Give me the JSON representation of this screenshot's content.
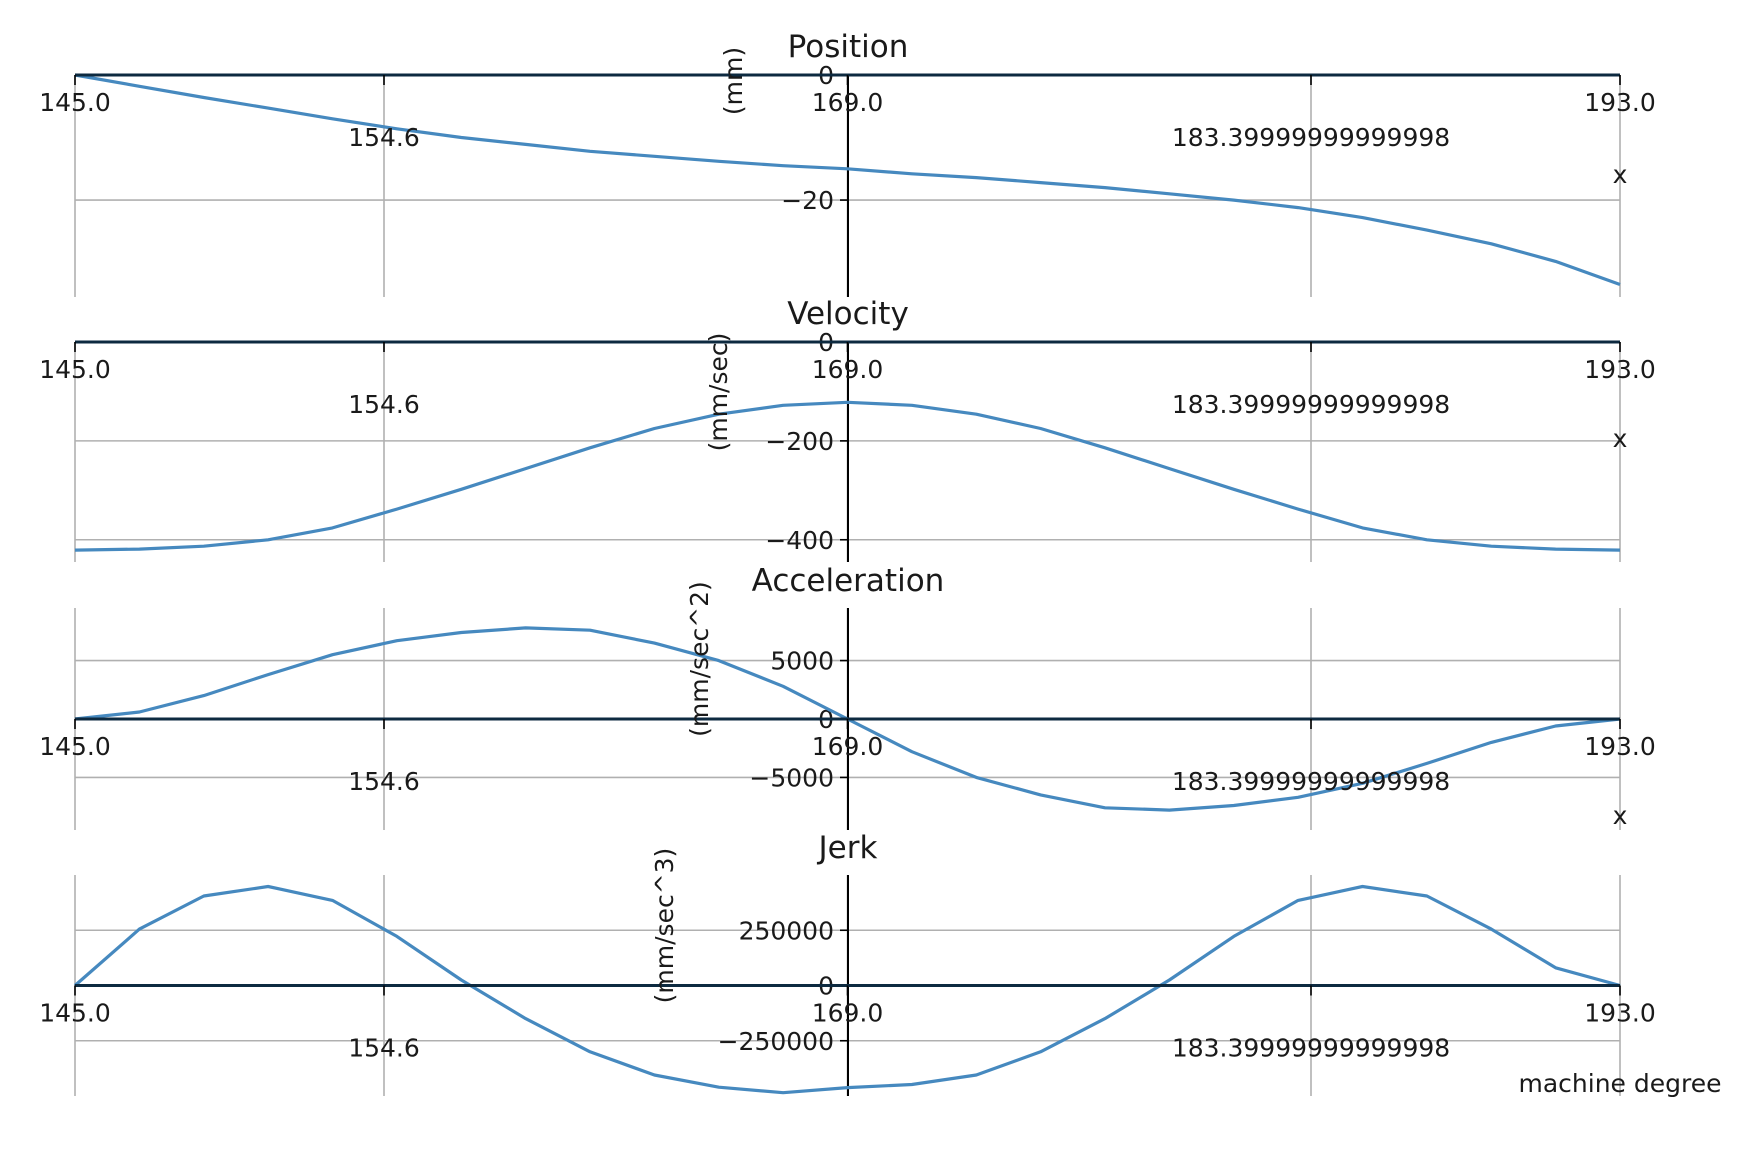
{
  "figure": {
    "line_color": "#4689bf",
    "x_axis_label": "machine degree"
  },
  "chart_data": [
    {
      "type": "line",
      "title": "Position",
      "xlabel": "x",
      "ylabel": "(mm)",
      "xlim": [
        145.0,
        193.0
      ],
      "ylim": [
        -35.5,
        0
      ],
      "x_ticks": [
        "145.0",
        "154.6",
        "169.0",
        "183.39999999999998",
        "193.0"
      ],
      "x_tick_values": [
        145.0,
        154.6,
        169.0,
        183.4,
        193.0
      ],
      "y_ticks": [
        0,
        -20
      ],
      "y_tick_labels": [
        "0",
        "−20"
      ],
      "grid": true,
      "x": [
        145,
        147,
        149,
        151,
        153,
        155,
        157,
        159,
        161,
        163,
        165,
        167,
        169,
        171,
        173,
        175,
        177,
        179,
        181,
        183,
        185,
        187,
        189,
        191,
        193
      ],
      "y": [
        0,
        -1.8,
        -3.6,
        -5.3,
        -7.0,
        -8.6,
        -10.0,
        -11.1,
        -12.2,
        -13.0,
        -13.8,
        -14.5,
        -15.0,
        -15.8,
        -16.4,
        -17.2,
        -18.0,
        -19.0,
        -20.0,
        -21.2,
        -22.8,
        -24.8,
        -27.0,
        -29.8,
        -33.5
      ]
    },
    {
      "type": "line",
      "title": "Velocity",
      "xlabel": "x",
      "ylabel": "(mm/sec)",
      "xlim": [
        145.0,
        193.0
      ],
      "ylim": [
        -445,
        0
      ],
      "x_ticks": [
        "145.0",
        "154.6",
        "169.0",
        "183.39999999999998",
        "193.0"
      ],
      "x_tick_values": [
        145.0,
        154.6,
        169.0,
        183.4,
        193.0
      ],
      "y_ticks": [
        0,
        -200,
        -400
      ],
      "y_tick_labels": [
        "0",
        "−200",
        "−400"
      ],
      "grid": true,
      "x": [
        145,
        147,
        149,
        151,
        153,
        155,
        157,
        159,
        161,
        163,
        165,
        167,
        169,
        171,
        173,
        175,
        177,
        179,
        181,
        183,
        185,
        187,
        189,
        191,
        193
      ],
      "y": [
        -421,
        -419,
        -413,
        -400,
        -376,
        -338,
        -298,
        -256,
        -214,
        -175,
        -146,
        -128,
        -122,
        -128,
        -146,
        -175,
        -214,
        -256,
        -298,
        -338,
        -376,
        -400,
        -413,
        -419,
        -421
      ]
    },
    {
      "type": "line",
      "title": "Acceleration",
      "xlabel": "x",
      "ylabel": "(mm/sec^2)",
      "xlim": [
        145.0,
        193.0
      ],
      "ylim": [
        -9500,
        9500
      ],
      "x_ticks": [
        "145.0",
        "154.6",
        "169.0",
        "183.39999999999998",
        "193.0"
      ],
      "x_tick_values": [
        145.0,
        154.6,
        169.0,
        183.4,
        193.0
      ],
      "y_ticks": [
        5000,
        0,
        -5000
      ],
      "y_tick_labels": [
        "5000",
        "0",
        "−5000"
      ],
      "grid": true,
      "x": [
        145,
        147,
        149,
        151,
        153,
        155,
        157,
        159,
        161,
        163,
        165,
        167,
        169,
        171,
        173,
        175,
        177,
        179,
        181,
        183,
        185,
        187,
        189,
        191,
        193
      ],
      "y": [
        0,
        600,
        2000,
        3800,
        5500,
        6700,
        7400,
        7800,
        7600,
        6500,
        5000,
        2800,
        0,
        -2800,
        -5000,
        -6500,
        -7600,
        -7800,
        -7400,
        -6700,
        -5500,
        -3800,
        -2000,
        -600,
        0
      ]
    },
    {
      "type": "line",
      "title": "Jerk",
      "xlabel": "machine degree",
      "ylabel": "(mm/sec^3)",
      "xlim": [
        145.0,
        193.0
      ],
      "ylim": [
        -500000,
        500000
      ],
      "x_ticks": [
        "145.0",
        "154.6",
        "169.0",
        "183.39999999999998",
        "193.0"
      ],
      "x_tick_values": [
        145.0,
        154.6,
        169.0,
        183.4,
        193.0
      ],
      "y_ticks": [
        250000,
        0,
        -250000
      ],
      "y_tick_labels": [
        "250000",
        "0",
        "−250000"
      ],
      "grid": true,
      "x": [
        145,
        147,
        149,
        151,
        153,
        155,
        157,
        159,
        161,
        163,
        165,
        167,
        169,
        171,
        173,
        175,
        177,
        179,
        181,
        183,
        185,
        187,
        189,
        191,
        193
      ],
      "y": [
        0,
        255000,
        405000,
        448000,
        385000,
        222000,
        25000,
        -150000,
        -300000,
        -405000,
        -460000,
        -485000,
        -462000,
        -448000,
        -405000,
        -300000,
        -150000,
        25000,
        222000,
        385000,
        448000,
        405000,
        255000,
        80000,
        0
      ]
    }
  ]
}
